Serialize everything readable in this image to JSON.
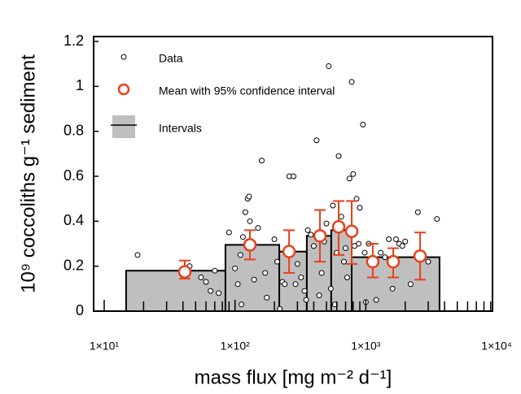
{
  "chart_data": {
    "type": "scatter",
    "xlabel": "mass flux [mg m⁻² d⁻¹]",
    "ylabel": "10⁹ coccoliths g⁻¹ sediment",
    "xscale": "log",
    "xlim": [
      8.3,
      9300
    ],
    "ylim": [
      0,
      1.2
    ],
    "xticks": [
      {
        "value": 10,
        "label": "1×10¹"
      },
      {
        "value": 100,
        "label": "1×10²"
      },
      {
        "value": 1000,
        "label": "1×10³"
      },
      {
        "value": 10000,
        "label": "1×10⁴"
      }
    ],
    "xminorticks": [
      20,
      30,
      40,
      50,
      60,
      70,
      80,
      90,
      200,
      300,
      400,
      500,
      600,
      700,
      800,
      900,
      2000,
      3000,
      4000,
      5000,
      6000,
      7000,
      8000,
      9000
    ],
    "yticks": [
      0,
      0.2,
      0.4,
      0.6,
      0.8,
      1,
      1.2
    ],
    "legend": "upper left",
    "series": [
      {
        "name": "Data",
        "type": "scatter",
        "color": "#000000",
        "fill": "#ffffff",
        "x": [
          18,
          40,
          45,
          55,
          60,
          65,
          75,
          70,
          90,
          100,
          110,
          115,
          120,
          125,
          128,
          130,
          105,
          112,
          140,
          150,
          160,
          170,
          175,
          200,
          210,
          220,
          230,
          240,
          260,
          280,
          290,
          300,
          320,
          340,
          350,
          360,
          380,
          400,
          420,
          440,
          460,
          480,
          500,
          520,
          540,
          560,
          580,
          600,
          620,
          650,
          680,
          700,
          720,
          750,
          780,
          800,
          820,
          850,
          880,
          900,
          950,
          980,
          1000,
          1050,
          1100,
          1200,
          1300,
          1400,
          1500,
          1600,
          1700,
          1800,
          1900,
          2000,
          2200,
          2500,
          2700,
          3000,
          3500,
          130
        ],
        "values": [
          0.25,
          0.19,
          0.2,
          0.15,
          0.13,
          0.09,
          0.08,
          0.18,
          0.35,
          0.19,
          0.25,
          0.33,
          0.44,
          0.5,
          0.51,
          0.4,
          0.12,
          0.03,
          0.14,
          0.37,
          0.67,
          0.17,
          0.06,
          0.32,
          0.22,
          0.01,
          0.13,
          0.12,
          0.6,
          0.6,
          0.12,
          0.21,
          0.15,
          0.09,
          0.05,
          0.36,
          0.34,
          0.29,
          0.76,
          0.07,
          0.17,
          0.31,
          0.39,
          1.09,
          0.1,
          0.47,
          0.03,
          0.26,
          0.69,
          0.42,
          0.22,
          0.28,
          0.15,
          0.59,
          1.02,
          0.61,
          0.29,
          0.5,
          0.3,
          0.46,
          0.83,
          0.26,
          0.04,
          0.3,
          0.23,
          0.05,
          0.26,
          0.24,
          0.32,
          0.1,
          0.32,
          0.3,
          0.29,
          0.31,
          0.12,
          0.44,
          0.24,
          0.22,
          0.41,
          0.3
        ]
      },
      {
        "name": "Mean with 95% confidence interval",
        "type": "errorbar",
        "color": "#e8401c",
        "x": [
          41.3,
          130,
          259,
          446,
          620,
          780,
          1130,
          1620,
          2600
        ],
        "values": [
          0.175,
          0.295,
          0.265,
          0.335,
          0.375,
          0.355,
          0.22,
          0.22,
          0.245
        ],
        "lower": [
          0.145,
          0.23,
          0.17,
          0.22,
          0.25,
          0.21,
          0.15,
          0.15,
          0.14
        ],
        "upper": [
          0.225,
          0.36,
          0.36,
          0.45,
          0.49,
          0.49,
          0.3,
          0.28,
          0.35
        ]
      },
      {
        "name": "Intervals",
        "type": "step",
        "color": "#bfbfbf",
        "bins": [
          14.7,
          84.5,
          218,
          354,
          544,
          780,
          3660
        ],
        "values": [
          0.18,
          0.295,
          0.265,
          0.335,
          0.36,
          0.24
        ]
      }
    ]
  }
}
